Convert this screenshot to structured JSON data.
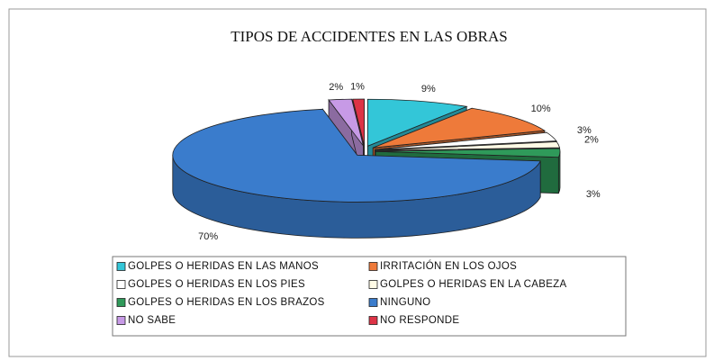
{
  "chart_data": {
    "type": "pie3d",
    "title": "TIPOS  DE ACCIDENTES EN LAS OBRAS",
    "categories": [
      "GOLPES O HERIDAS EN LAS MANOS",
      "IRRITACIÓN EN LOS OJOS",
      "GOLPES O HERIDAS EN LOS PIES",
      "GOLPES O HERIDAS EN LA CABEZA",
      "GOLPES O HERIDAS EN LOS BRAZOS",
      "NINGUNO",
      "NO SABE",
      "NO RESPONDE"
    ],
    "values": [
      9,
      10,
      3,
      2,
      3,
      70,
      2,
      1
    ],
    "value_labels": [
      "9%",
      "10%",
      "3%",
      "2%",
      "3%",
      "70%",
      "2%",
      "1%"
    ],
    "colors": [
      "#33c6d8",
      "#ee7a3a",
      "#ffffff",
      "#fffbe6",
      "#2f9a5a",
      "#3a7ccc",
      "#c79ae6",
      "#dd3346"
    ],
    "legend": "bottom"
  }
}
